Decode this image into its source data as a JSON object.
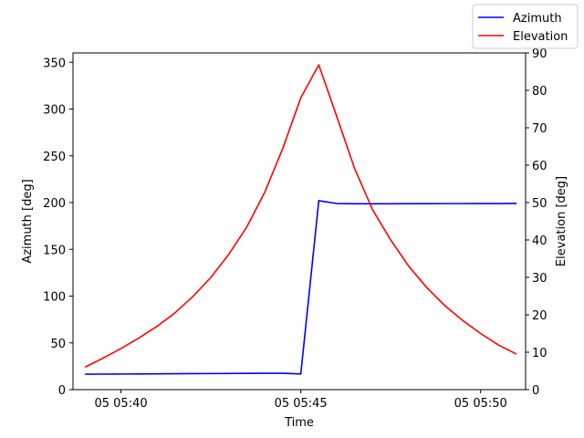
{
  "chart_data": {
    "type": "line",
    "xlabel": "Time",
    "ylabel_left": "Azimuth [deg]",
    "ylabel_right": "Elevation [deg]",
    "xlim": [
      "05 05:38:40",
      "05 05:51:15"
    ],
    "ylim_left": [
      0,
      360
    ],
    "ylim_right": [
      0,
      90
    ],
    "x_ticks": [
      "05 05:40",
      "05 05:45",
      "05 05:50"
    ],
    "y_ticks_left": [
      0,
      50,
      100,
      150,
      200,
      250,
      300,
      350
    ],
    "y_ticks_right": [
      0,
      10,
      20,
      30,
      40,
      50,
      60,
      70,
      80,
      90
    ],
    "grid": false,
    "legend_position": "top-right",
    "x": [
      "05 05:39:00",
      "05 05:39:30",
      "05 05:40:00",
      "05 05:40:30",
      "05 05:41:00",
      "05 05:41:30",
      "05 05:42:00",
      "05 05:42:30",
      "05 05:43:00",
      "05 05:43:30",
      "05 05:44:00",
      "05 05:44:30",
      "05 05:45:00",
      "05 05:45:30",
      "05 05:46:00",
      "05 05:46:30",
      "05 05:47:00",
      "05 05:47:30",
      "05 05:48:00",
      "05 05:48:30",
      "05 05:49:00",
      "05 05:49:30",
      "05 05:50:00",
      "05 05:50:30",
      "05 05:51:00"
    ],
    "series": [
      {
        "name": "Azimuth",
        "axis": "left",
        "color": "#0000ff",
        "values": [
          16.5,
          16.6,
          16.7,
          16.8,
          16.9,
          17.0,
          17.1,
          17.2,
          17.3,
          17.4,
          17.5,
          17.5,
          16.8,
          202.0,
          199.0,
          198.7,
          198.7,
          198.7,
          198.8,
          198.8,
          198.9,
          198.9,
          199.0,
          199.0,
          199.1
        ]
      },
      {
        "name": "Elevation",
        "axis": "right",
        "color": "#ff0000",
        "values": [
          6.0,
          8.4,
          11.0,
          13.8,
          16.9,
          20.5,
          24.9,
          30.0,
          36.2,
          43.5,
          52.8,
          64.5,
          78.0,
          86.8,
          73.0,
          59.0,
          48.0,
          40.0,
          33.0,
          27.3,
          22.5,
          18.5,
          15.0,
          11.9,
          9.5
        ]
      }
    ]
  }
}
